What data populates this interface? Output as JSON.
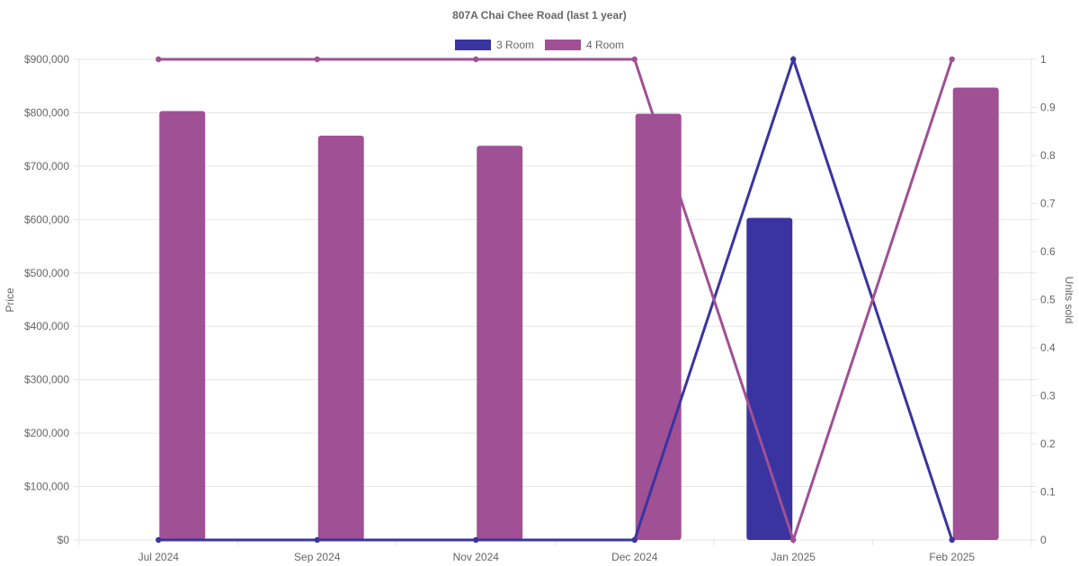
{
  "chart_data": {
    "type": "bar",
    "title": "807A Chai Chee Road (last 1 year)",
    "categories": [
      "Jul 2024",
      "Sep 2024",
      "Nov 2024",
      "Dec 2024",
      "Jan 2025",
      "Feb 2025"
    ],
    "y_left": {
      "label": "Price",
      "ylim": [
        0,
        900000
      ],
      "ticks": [
        "$0",
        "$100,000",
        "$200,000",
        "$300,000",
        "$400,000",
        "$500,000",
        "$600,000",
        "$700,000",
        "$800,000",
        "$900,000"
      ],
      "tick_values": [
        0,
        100000,
        200000,
        300000,
        400000,
        500000,
        600000,
        700000,
        800000,
        900000
      ]
    },
    "y_right": {
      "label": "Units sold",
      "ylim": [
        0,
        1
      ],
      "ticks": [
        "0",
        "0.1",
        "0.2",
        "0.3",
        "0.4",
        "0.5",
        "0.6",
        "0.7",
        "0.8",
        "0.9",
        "1"
      ],
      "tick_values": [
        0,
        0.1,
        0.2,
        0.3,
        0.4,
        0.5,
        0.6,
        0.7,
        0.8,
        0.9,
        1
      ]
    },
    "legend_position": "top",
    "grid": true,
    "series": [
      {
        "name": "3 Room",
        "color": "#3a34a0",
        "price": [
          null,
          null,
          null,
          null,
          603000,
          null
        ],
        "units": [
          0,
          0,
          0,
          0,
          1,
          0
        ]
      },
      {
        "name": "4 Room",
        "color": "#a05094",
        "price": [
          803000,
          757000,
          738000,
          798000,
          null,
          847000
        ],
        "units": [
          1,
          1,
          1,
          1,
          0,
          1
        ]
      }
    ]
  }
}
